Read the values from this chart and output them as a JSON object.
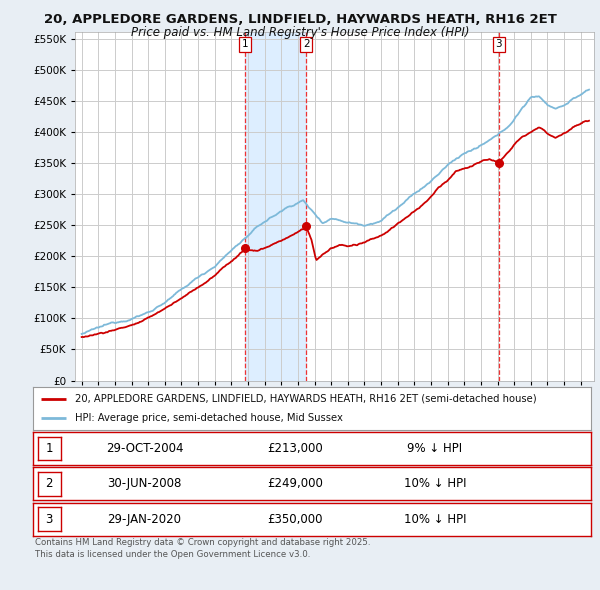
{
  "title1": "20, APPLEDORE GARDENS, LINDFIELD, HAYWARDS HEATH, RH16 2ET",
  "title2": "Price paid vs. HM Land Registry's House Price Index (HPI)",
  "hpi_color": "#7db9d9",
  "price_color": "#cc0000",
  "vline_color": "#ee3333",
  "grid_color": "#cccccc",
  "bg_color": "#e8eef4",
  "plot_bg": "#ffffff",
  "shade_color": "#ddeeff",
  "ylim": [
    0,
    560000
  ],
  "yticks": [
    0,
    50000,
    100000,
    150000,
    200000,
    250000,
    300000,
    350000,
    400000,
    450000,
    500000,
    550000
  ],
  "transactions": [
    {
      "label": "1",
      "date_num": 2004.83,
      "price": 213000,
      "year_label": "29-OCT-2004",
      "pct": "9%",
      "dir": "↓"
    },
    {
      "label": "2",
      "date_num": 2008.5,
      "price": 249000,
      "year_label": "30-JUN-2008",
      "pct": "10%",
      "dir": "↓"
    },
    {
      "label": "3",
      "date_num": 2020.08,
      "price": 350000,
      "year_label": "29-JAN-2020",
      "pct": "10%",
      "dir": "↓"
    }
  ],
  "legend_line1": "20, APPLEDORE GARDENS, LINDFIELD, HAYWARDS HEATH, RH16 2ET (semi-detached house)",
  "legend_line2": "HPI: Average price, semi-detached house, Mid Sussex",
  "footer": "Contains HM Land Registry data © Crown copyright and database right 2025.\nThis data is licensed under the Open Government Licence v3.0."
}
